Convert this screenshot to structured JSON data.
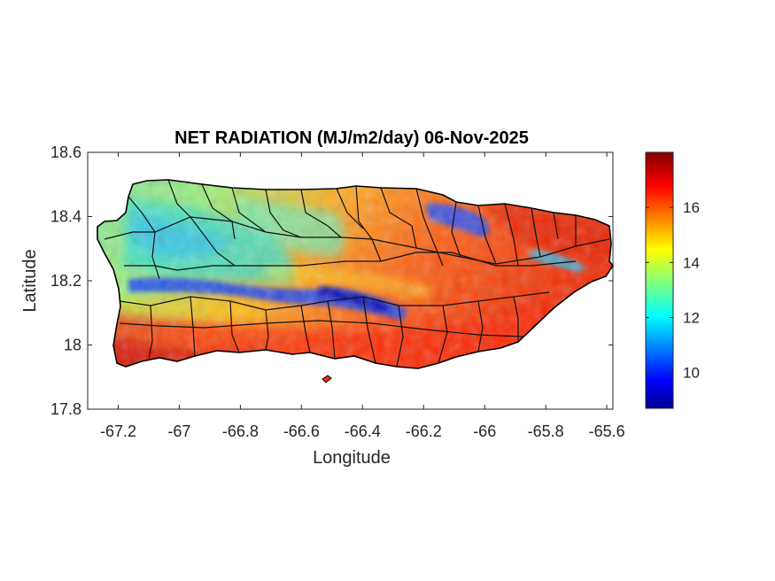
{
  "chart_data": {
    "type": "heatmap",
    "title": "NET RADIATION (MJ/m2/day) 06-Nov-2025",
    "xlabel": "Longitude",
    "ylabel": "Latitude",
    "xlim": [
      -67.3,
      -65.58
    ],
    "ylim": [
      17.8,
      18.6
    ],
    "x_ticks": [
      "-67.2",
      "-67",
      "-66.8",
      "-66.6",
      "-66.4",
      "-66.2",
      "-66",
      "-65.8",
      "-65.6"
    ],
    "y_ticks": [
      "18.6",
      "18.4",
      "18.2",
      "18",
      "17.8"
    ],
    "colorbar": {
      "colormap": "jet",
      "range": [
        8.7,
        18.0
      ],
      "ticks": [
        "10",
        "12",
        "14",
        "16"
      ]
    },
    "field_summary": {
      "low_band_center": 9.5,
      "coastal_south_value": 17.5,
      "northeast_value": 17.0,
      "western_interior_value": 12.0
    }
  }
}
